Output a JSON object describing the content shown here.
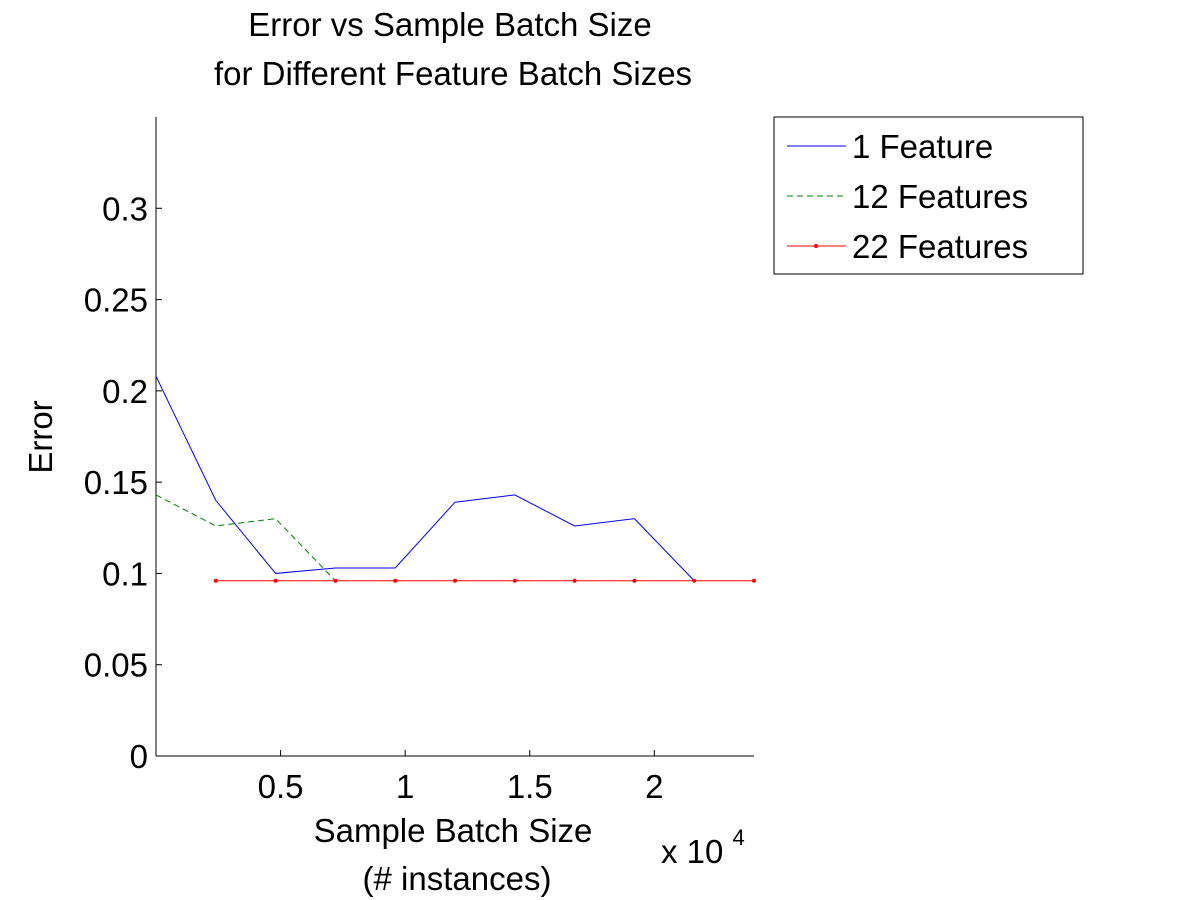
{
  "chart_data": {
    "type": "line",
    "title": [
      "Error vs Sample Batch Size",
      "for Different Feature Batch Sizes"
    ],
    "xlabel": [
      "Sample Batch Size",
      "(# instances)"
    ],
    "x_exponent": {
      "base": "x 10",
      "power": "4"
    },
    "ylabel": "Error",
    "xlim": [
      0,
      24000
    ],
    "ylim": [
      0,
      0.35
    ],
    "x_ticks": [
      5000,
      10000,
      15000,
      20000
    ],
    "x_tick_labels": [
      "0.5",
      "1",
      "1.5",
      "2"
    ],
    "y_ticks": [
      0,
      0.05,
      0.1,
      0.15,
      0.2,
      0.25,
      0.3
    ],
    "y_tick_labels": [
      "0",
      "0.05",
      "0.1",
      "0.15",
      "0.2",
      "0.25",
      "0.3"
    ],
    "grid": false,
    "legend_position": "outside-top-right",
    "series": [
      {
        "name": "1 Feature",
        "color": "#0000ff",
        "style": "solid",
        "x": [
          0,
          2400,
          4800,
          7200,
          9600,
          12000,
          14400,
          16800,
          19200,
          21600
        ],
        "y": [
          0.208,
          0.14,
          0.1,
          0.103,
          0.103,
          0.139,
          0.143,
          0.126,
          0.13,
          0.096
        ]
      },
      {
        "name": "12 Features",
        "color": "#008000",
        "style": "dashed",
        "x": [
          0,
          2400,
          4800,
          7200
        ],
        "y": [
          0.143,
          0.126,
          0.13,
          0.096
        ]
      },
      {
        "name": "22 Features",
        "color": "#ff0000",
        "style": "solid-dot",
        "x": [
          2400,
          4800,
          7200,
          9600,
          12000,
          14400,
          16800,
          19200,
          21600,
          24000
        ],
        "y": [
          0.096,
          0.096,
          0.096,
          0.096,
          0.096,
          0.096,
          0.096,
          0.096,
          0.096,
          0.096
        ]
      }
    ]
  }
}
